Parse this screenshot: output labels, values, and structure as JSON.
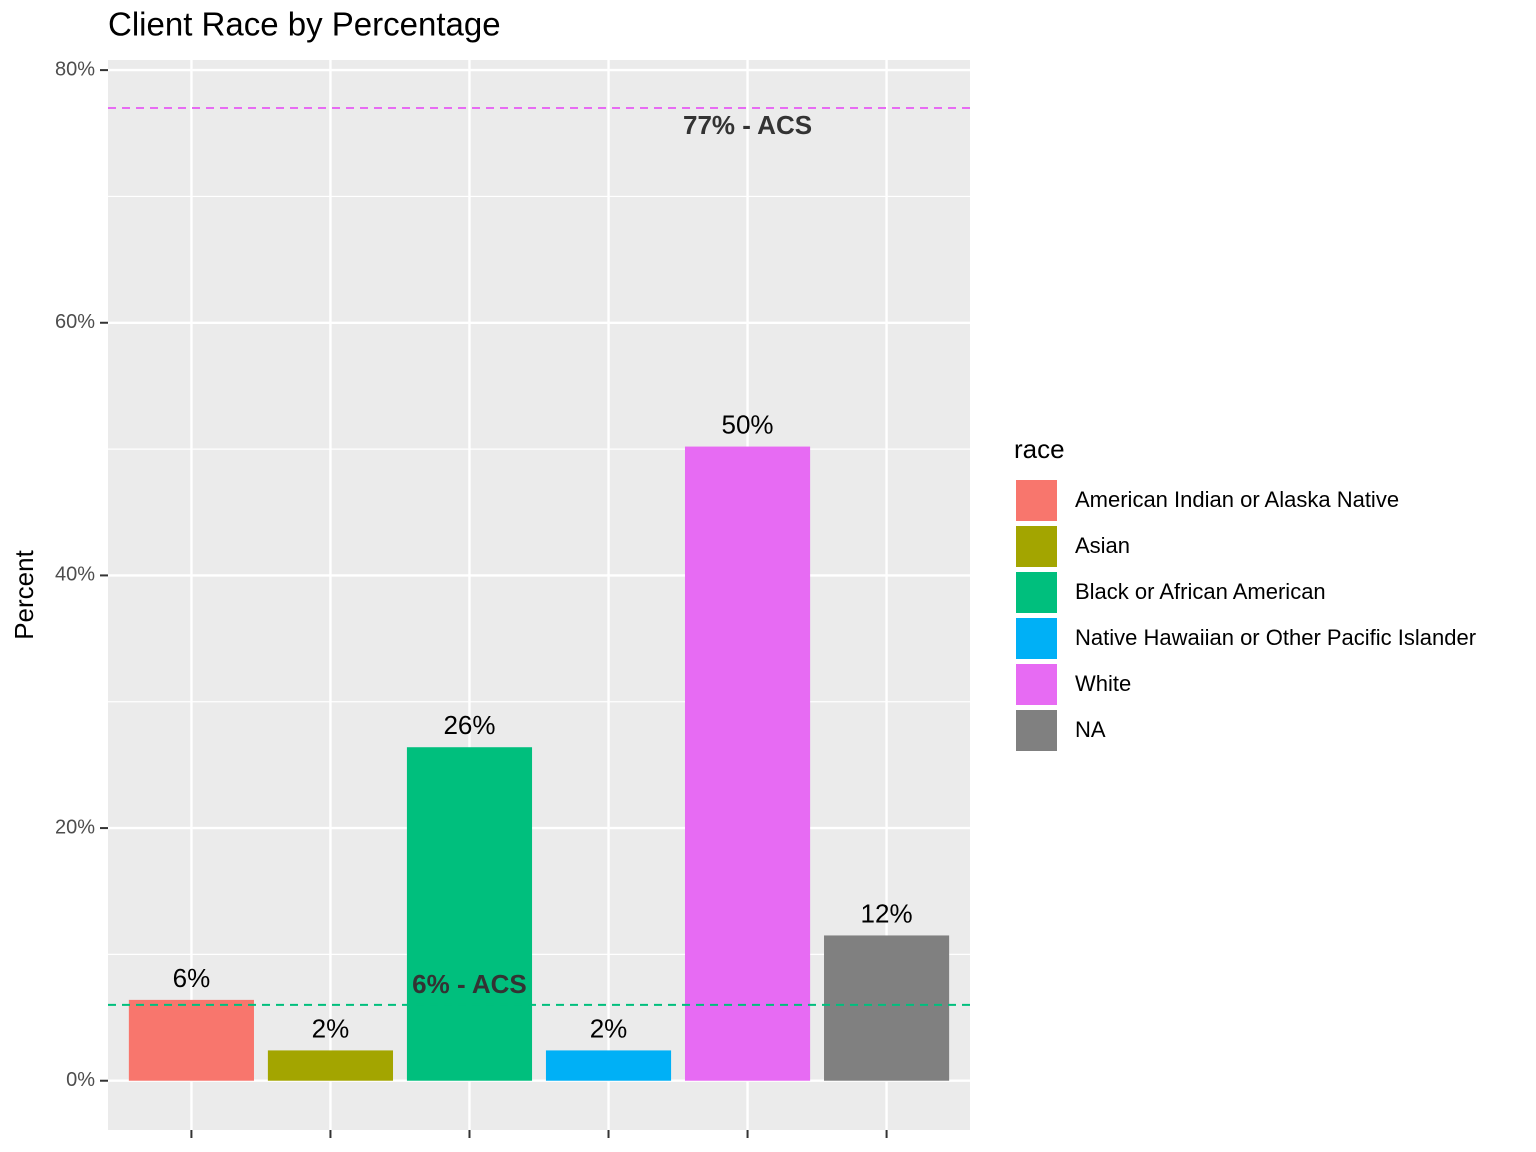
{
  "chart_data": {
    "type": "bar",
    "title": "Client Race by Percentage",
    "y_label": "Percent",
    "legend_title": "race",
    "categories": [
      "American Indian or Alaska Native",
      "Asian",
      "Black or African American",
      "Native Hawaiian or Other Pacific Islander",
      "White",
      "NA"
    ],
    "values": [
      6.4,
      2.4,
      26.4,
      2.4,
      50.2,
      11.5
    ],
    "value_labels": [
      "6%",
      "2%",
      "26%",
      "2%",
      "50%",
      "12%"
    ],
    "colors": [
      "#f8766d",
      "#a3a500",
      "#00bf7d",
      "#00b0f6",
      "#e76bf3",
      "#808080"
    ],
    "ylim": [
      -3.9,
      80.8
    ],
    "yticks": [
      {
        "value": 0,
        "label": "0%"
      },
      {
        "value": 20,
        "label": "20%"
      },
      {
        "value": 40,
        "label": "40%"
      },
      {
        "value": 60,
        "label": "60%"
      },
      {
        "value": 80,
        "label": "80%"
      }
    ],
    "y_minor_ticks": [
      10,
      30,
      50,
      70
    ],
    "grid": true,
    "reference_lines": [
      {
        "value": 77,
        "label": "77% - ACS",
        "color": "#e76bf3",
        "category": 4
      },
      {
        "value": 6,
        "label": "6% - ACS",
        "color": "#00bf7d",
        "category": 2
      }
    ]
  }
}
